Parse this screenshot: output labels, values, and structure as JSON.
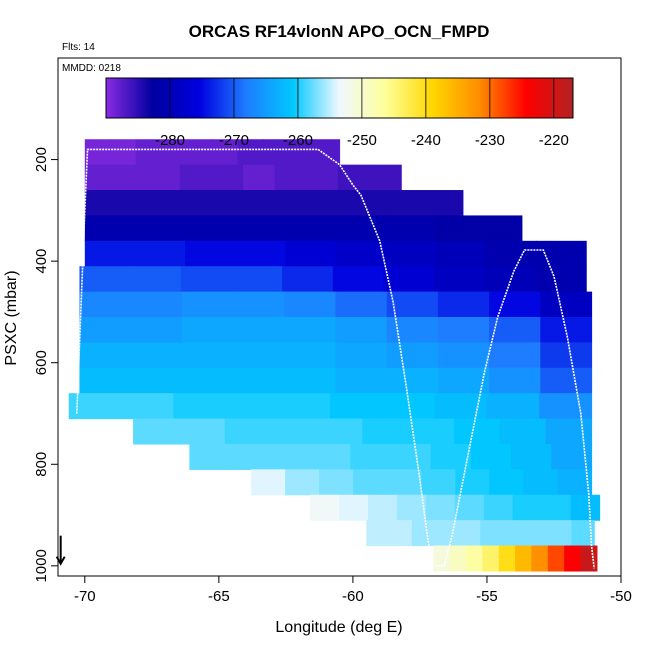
{
  "chart_data": {
    "type": "heatmap",
    "title": "ORCAS RF14vlonN APO_OCN_FMPD",
    "notes": {
      "flights": "Flts: 14",
      "date": "MMDD: 0218"
    },
    "xlabel": "Longitude (deg E)",
    "ylabel": "PSXC (mbar)",
    "xlim": [
      -71,
      -50
    ],
    "ylim": [
      1020,
      0
    ],
    "x_ticks": [
      -70,
      -65,
      -60,
      -55,
      -50
    ],
    "y_ticks": [
      200,
      400,
      600,
      800,
      1000
    ],
    "grid": false,
    "colorbar": {
      "position": "top",
      "range": [
        -290,
        -217
      ],
      "ticks": [
        -280,
        -270,
        -260,
        -250,
        -240,
        -230,
        -220
      ],
      "colors": [
        "#8a2be2",
        "#0000a0",
        "#0000e0",
        "#1e7cff",
        "#00c8ff",
        "#f0f8ff",
        "#ffff99",
        "#ffd700",
        "#ff8c00",
        "#ff0000",
        "#b22222"
      ]
    },
    "layers": [
      {
        "p": 185,
        "x0": -70.0,
        "x1": -60.5,
        "values": [
          -289,
          -289,
          -288,
          -288,
          -288,
          -288,
          -287,
          -287,
          -287,
          -287
        ]
      },
      {
        "p": 235,
        "x0": -70.0,
        "x1": -58.2,
        "values": [
          -288,
          -288,
          -288,
          -287,
          -287,
          -288,
          -287,
          -287,
          -286,
          -286
        ]
      },
      {
        "p": 285,
        "x0": -70.0,
        "x1": -55.9,
        "values": [
          -284,
          -284,
          -284,
          -284,
          -284,
          -284,
          -284,
          -284,
          -284,
          -284
        ]
      },
      {
        "p": 335,
        "x0": -70.0,
        "x1": -53.7,
        "values": [
          -281,
          -281,
          -281,
          -281,
          -281,
          -281,
          -281,
          -281,
          -282,
          -282
        ]
      },
      {
        "p": 385,
        "x0": -70.0,
        "x1": -51.3,
        "values": [
          -274,
          -274,
          -275,
          -275,
          -277,
          -278,
          -279,
          -280,
          -281,
          -281
        ]
      },
      {
        "p": 435,
        "x0": -70.2,
        "x1": -51.3,
        "values": [
          -270,
          -270,
          -271,
          -271,
          -273,
          -275,
          -277,
          -279,
          -280,
          -281
        ]
      },
      {
        "p": 485,
        "x0": -70.2,
        "x1": -51.1,
        "values": [
          -267,
          -267,
          -266,
          -266,
          -267,
          -269,
          -271,
          -273,
          -275,
          -279
        ]
      },
      {
        "p": 535,
        "x0": -70.2,
        "x1": -51.1,
        "values": [
          -265,
          -265,
          -264,
          -264,
          -264,
          -265,
          -267,
          -268,
          -270,
          -274
        ]
      },
      {
        "p": 585,
        "x0": -70.2,
        "x1": -51.1,
        "values": [
          -263,
          -263,
          -263,
          -263,
          -263,
          -264,
          -265,
          -266,
          -268,
          -272
        ]
      },
      {
        "p": 635,
        "x0": -70.2,
        "x1": -51.1,
        "values": [
          -262,
          -262,
          -262,
          -262,
          -262,
          -263,
          -263,
          -264,
          -266,
          -270
        ]
      },
      {
        "p": 685,
        "x0": -70.6,
        "x1": -51.1,
        "values": [
          -259,
          -259,
          -260,
          -260,
          -260,
          -261,
          -261,
          -262,
          -263,
          -266
        ]
      },
      {
        "p": 735,
        "x0": -68.2,
        "x1": -51.1,
        "values": [
          -258,
          -258,
          -259,
          -259,
          -259,
          -260,
          -260,
          -261,
          -262,
          -264
        ]
      },
      {
        "p": 785,
        "x0": -66.1,
        "x1": -51.1,
        "values": [
          -258,
          -258,
          -258,
          -258,
          -259,
          -259,
          -260,
          -261,
          -262,
          -264
        ]
      },
      {
        "p": 835,
        "x0": -63.8,
        "x1": -51.1,
        "values": [
          -254,
          -256,
          -257,
          -258,
          -258,
          -259,
          -260,
          -261,
          -262,
          -263
        ]
      },
      {
        "p": 885,
        "x0": -61.6,
        "x1": -50.8,
        "values": [
          -253,
          -254,
          -255,
          -256,
          -257,
          -258,
          -259,
          -260,
          -260,
          -262
        ]
      },
      {
        "p": 935,
        "x0": -59.5,
        "x1": -51.0,
        "values": [
          -255,
          -255,
          -256,
          -256,
          -256,
          -257,
          -257,
          -257,
          -257,
          -258
        ]
      },
      {
        "p": 985,
        "x0": -57.0,
        "x1": -50.9,
        "values": [
          -251,
          -249,
          -247,
          -244,
          -240,
          -236,
          -232,
          -228,
          -224,
          -219
        ]
      }
    ],
    "flight_track": {
      "lon": [
        -70.3,
        -70.0,
        -69.9,
        -61.3,
        -60.5,
        -60.0,
        -59.7,
        -59.0,
        -58.5,
        -58.0,
        -57.5,
        -57.2,
        -57.0,
        -56.6,
        -56.3,
        -55.7,
        -55.1,
        -54.6,
        -54.0,
        -53.6,
        -52.9,
        -52.5,
        -52.0,
        -51.5,
        -51.2,
        -51.1,
        -51.0
      ],
      "psxc": [
        700,
        300,
        180,
        180,
        210,
        250,
        270,
        360,
        480,
        650,
        830,
        950,
        1000,
        1000,
        940,
        780,
        620,
        510,
        420,
        378,
        378,
        430,
        550,
        700,
        860,
        960,
        1005
      ]
    },
    "markers": [
      {
        "type": "arrow-down",
        "lon": -70.9,
        "psxc": 980
      }
    ]
  }
}
